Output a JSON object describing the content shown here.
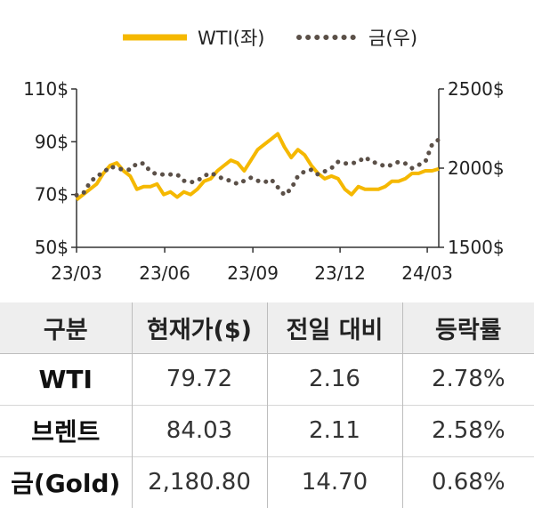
{
  "chart_data": {
    "type": "line",
    "legend": [
      "WTI(좌)",
      "금(우)"
    ],
    "legend_position": "top",
    "x_tick_labels": [
      "23/03",
      "23/06",
      "23/09",
      "23/12",
      "24/03"
    ],
    "y_left": {
      "ticks": [
        "110$",
        "90$",
        "70$",
        "50$"
      ],
      "range": [
        50,
        110
      ]
    },
    "y_right": {
      "ticks": [
        "2500$",
        "2000$",
        "1500$"
      ],
      "range": [
        1500,
        2500
      ]
    },
    "grid": false,
    "series": [
      {
        "name": "WTI(좌)",
        "axis": "left",
        "style": "solid",
        "color": "#f5b800",
        "points": [
          [
            "23/03/01",
            68
          ],
          [
            "23/03/08",
            70
          ],
          [
            "23/03/15",
            72
          ],
          [
            "23/03/22",
            74
          ],
          [
            "23/03/29",
            78
          ],
          [
            "23/04/05",
            81
          ],
          [
            "23/04/12",
            82
          ],
          [
            "23/04/19",
            79
          ],
          [
            "23/04/26",
            77
          ],
          [
            "23/05/03",
            72
          ],
          [
            "23/05/10",
            73
          ],
          [
            "23/05/17",
            73
          ],
          [
            "23/05/24",
            74
          ],
          [
            "23/05/31",
            70
          ],
          [
            "23/06/07",
            71
          ],
          [
            "23/06/14",
            69
          ],
          [
            "23/06/21",
            71
          ],
          [
            "23/06/28",
            70
          ],
          [
            "23/07/05",
            72
          ],
          [
            "23/07/12",
            75
          ],
          [
            "23/07/19",
            76
          ],
          [
            "23/07/26",
            79
          ],
          [
            "23/08/02",
            81
          ],
          [
            "23/08/09",
            83
          ],
          [
            "23/08/16",
            82
          ],
          [
            "23/08/23",
            79
          ],
          [
            "23/08/30",
            83
          ],
          [
            "23/09/06",
            87
          ],
          [
            "23/09/13",
            89
          ],
          [
            "23/09/20",
            91
          ],
          [
            "23/09/27",
            93
          ],
          [
            "23/10/04",
            88
          ],
          [
            "23/10/11",
            84
          ],
          [
            "23/10/18",
            87
          ],
          [
            "23/10/25",
            85
          ],
          [
            "23/11/01",
            81
          ],
          [
            "23/11/08",
            78
          ],
          [
            "23/11/15",
            76
          ],
          [
            "23/11/22",
            77
          ],
          [
            "23/11/29",
            76
          ],
          [
            "23/12/06",
            72
          ],
          [
            "23/12/13",
            70
          ],
          [
            "23/12/20",
            73
          ],
          [
            "23/12/27",
            72
          ],
          [
            "24/01/03",
            72
          ],
          [
            "24/01/10",
            72
          ],
          [
            "24/01/17",
            73
          ],
          [
            "24/01/24",
            75
          ],
          [
            "24/01/31",
            75
          ],
          [
            "24/02/07",
            76
          ],
          [
            "24/02/14",
            78
          ],
          [
            "24/02/21",
            78
          ],
          [
            "24/02/28",
            79
          ],
          [
            "24/03/06",
            79
          ],
          [
            "24/03/13",
            79.72
          ]
        ]
      },
      {
        "name": "금(우)",
        "axis": "right",
        "style": "dotted",
        "color": "#5b5048",
        "points": [
          [
            "23/03/01",
            1830
          ],
          [
            "23/03/08",
            1840
          ],
          [
            "23/03/15",
            1910
          ],
          [
            "23/03/22",
            1950
          ],
          [
            "23/03/29",
            1970
          ],
          [
            "23/04/05",
            2010
          ],
          [
            "23/04/12",
            2000
          ],
          [
            "23/04/19",
            1990
          ],
          [
            "23/04/26",
            1990
          ],
          [
            "23/05/03",
            2030
          ],
          [
            "23/05/10",
            2030
          ],
          [
            "23/05/17",
            1980
          ],
          [
            "23/05/24",
            1960
          ],
          [
            "23/05/31",
            1960
          ],
          [
            "23/06/07",
            1960
          ],
          [
            "23/06/14",
            1960
          ],
          [
            "23/06/21",
            1920
          ],
          [
            "23/06/28",
            1910
          ],
          [
            "23/07/05",
            1920
          ],
          [
            "23/07/12",
            1950
          ],
          [
            "23/07/19",
            1970
          ],
          [
            "23/07/26",
            1950
          ],
          [
            "23/08/02",
            1930
          ],
          [
            "23/08/09",
            1920
          ],
          [
            "23/08/16",
            1900
          ],
          [
            "23/08/23",
            1920
          ],
          [
            "23/08/30",
            1940
          ],
          [
            "23/09/06",
            1920
          ],
          [
            "23/09/13",
            1910
          ],
          [
            "23/09/20",
            1930
          ],
          [
            "23/09/27",
            1880
          ],
          [
            "23/10/04",
            1830
          ],
          [
            "23/10/11",
            1870
          ],
          [
            "23/10/18",
            1950
          ],
          [
            "23/10/25",
            1980
          ],
          [
            "23/11/01",
            1990
          ],
          [
            "23/11/08",
            1960
          ],
          [
            "23/11/15",
            1980
          ],
          [
            "23/11/22",
            2000
          ],
          [
            "23/11/29",
            2040
          ],
          [
            "23/12/06",
            2030
          ],
          [
            "23/12/13",
            2030
          ],
          [
            "23/12/20",
            2040
          ],
          [
            "23/12/27",
            2070
          ],
          [
            "24/01/03",
            2040
          ],
          [
            "24/01/10",
            2030
          ],
          [
            "24/01/17",
            2010
          ],
          [
            "24/01/24",
            2020
          ],
          [
            "24/01/31",
            2040
          ],
          [
            "24/02/07",
            2030
          ],
          [
            "24/02/14",
            2000
          ],
          [
            "24/02/21",
            2020
          ],
          [
            "24/02/28",
            2040
          ],
          [
            "24/03/06",
            2150
          ],
          [
            "24/03/13",
            2180.8
          ]
        ]
      }
    ]
  },
  "table": {
    "headers": [
      "구분",
      "현재가($)",
      "전일 대비",
      "등락률"
    ],
    "rows": [
      [
        "WTI",
        "79.72",
        "2.16",
        "2.78%"
      ],
      [
        "브렌트",
        "84.03",
        "2.11",
        "2.58%"
      ],
      [
        "금(Gold)",
        "2,180.80",
        "14.70",
        "0.68%"
      ]
    ]
  }
}
